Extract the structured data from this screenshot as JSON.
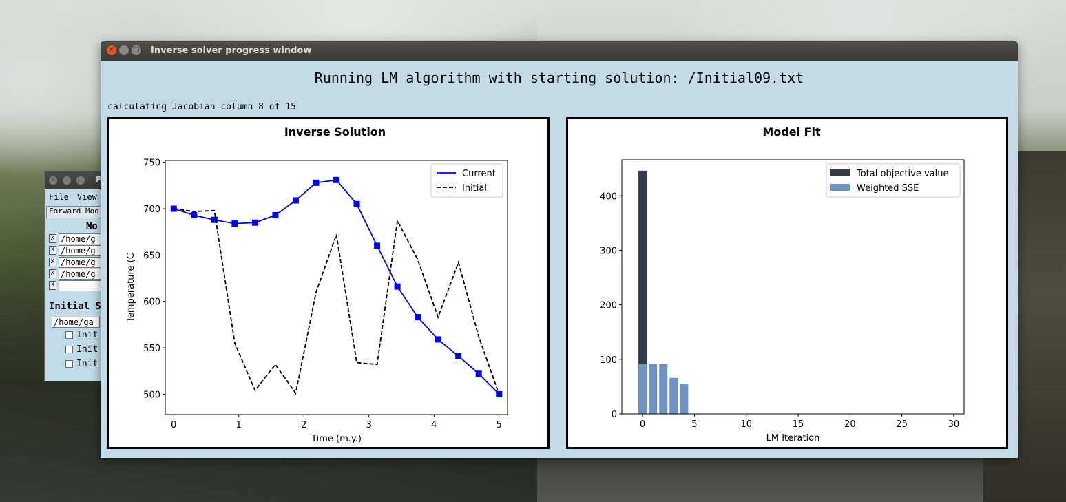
{
  "background_window": {
    "title": "F",
    "menu": [
      "File",
      "View"
    ],
    "tab": "Forward Mod",
    "section1": "Mo",
    "paths": [
      "/home/g",
      "/home/g",
      "/home/g",
      "/home/g",
      ""
    ],
    "check_mark": "X",
    "section2": "Initial S",
    "initial_path": "/home/ga",
    "options": [
      "Init",
      "Init",
      "Init"
    ]
  },
  "window": {
    "title": "Inverse solver progress window",
    "heading": "Running LM algorithm with starting solution: /Initial09.txt",
    "status": "calculating Jacobian column 8 of 15"
  },
  "chart_data": [
    {
      "type": "line",
      "title": "Inverse Solution",
      "xlabel": "Time (m.y.)",
      "ylabel": "Temperature (C",
      "xlim": [
        -0.13,
        5.13
      ],
      "ylim": [
        478,
        752
      ],
      "xticks": [
        0,
        1,
        2,
        3,
        4,
        5
      ],
      "yticks": [
        500,
        550,
        600,
        650,
        700,
        750
      ],
      "legend_position": "top-right",
      "series": [
        {
          "name": "Current",
          "color": "#0000ff",
          "style": "solid",
          "marker": "square",
          "x": [
            0,
            0.3125,
            0.625,
            0.9375,
            1.25,
            1.5625,
            1.875,
            2.1875,
            2.5,
            2.8125,
            3.125,
            3.4375,
            3.75,
            4.0625,
            4.375,
            4.6875,
            5
          ],
          "y": [
            700,
            693,
            688,
            684,
            685,
            693,
            709,
            728,
            731,
            705,
            660,
            616,
            583,
            559,
            541,
            522,
            500
          ]
        },
        {
          "name": "Initial",
          "color": "#000000",
          "style": "dashed",
          "marker": "none",
          "x": [
            0,
            0.3125,
            0.625,
            0.9375,
            1.25,
            1.5625,
            1.875,
            2.1875,
            2.5,
            2.8125,
            3.125,
            3.4375,
            3.75,
            4.0625,
            4.375,
            4.6875,
            5
          ],
          "y": [
            700,
            697,
            698,
            555,
            504,
            532,
            501,
            610,
            672,
            534,
            532,
            687,
            645,
            583,
            642,
            562,
            500
          ]
        }
      ]
    },
    {
      "type": "bar",
      "title": "Model Fit",
      "xlabel": "LM Iteration",
      "ylabel": "",
      "xlim": [
        -2,
        31
      ],
      "ylim": [
        0,
        466
      ],
      "xticks": [
        0,
        5,
        10,
        15,
        20,
        25,
        30
      ],
      "yticks": [
        0,
        100,
        200,
        300,
        400
      ],
      "legend_position": "top-right",
      "series": [
        {
          "name": "Total objective value",
          "color": "#353b45",
          "x": [
            0
          ],
          "values": [
            446
          ]
        },
        {
          "name": "Weighted SSE",
          "color": "#6e93c4",
          "x": [
            0,
            1,
            2,
            3,
            4
          ],
          "values": [
            91,
            91,
            91,
            66,
            55
          ]
        }
      ]
    }
  ]
}
